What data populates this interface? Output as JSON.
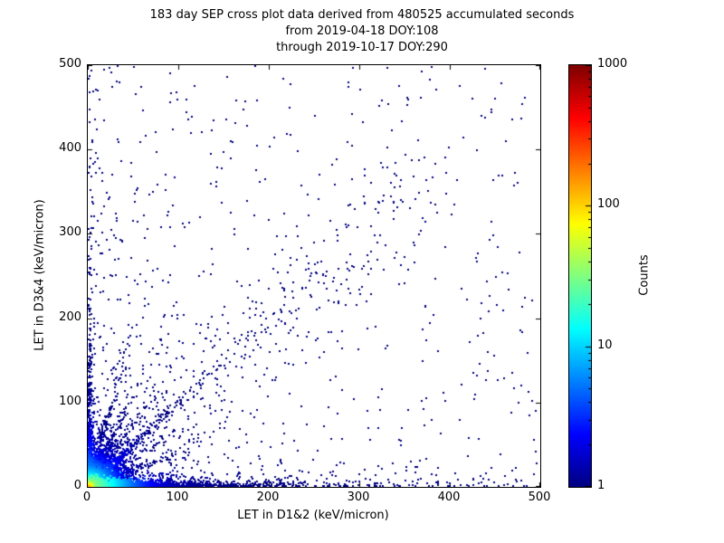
{
  "figure": {
    "background": "#ffffff"
  },
  "chart_data": {
    "type": "scatter",
    "title_lines": [
      "183 day SEP cross plot data derived from 480525 accumulated seconds",
      "from 2019-04-18 DOY:108",
      "through 2019-10-17 DOY:290"
    ],
    "xlabel": "LET in D1&2 (keV/micron)",
    "ylabel": "LET in D3&4 (keV/micron)",
    "xlim": [
      0,
      500
    ],
    "ylim": [
      0,
      500
    ],
    "xticks": [
      "0",
      "100",
      "200",
      "300",
      "400",
      "500"
    ],
    "yticks": [
      "0",
      "100",
      "200",
      "300",
      "400",
      "500"
    ],
    "grid": false,
    "legend": "none",
    "colorbar": {
      "label": "Counts",
      "scale": "log",
      "range": [
        1,
        1000
      ],
      "ticks": [
        "1",
        "10",
        "100",
        "1000"
      ],
      "colormap": "jet",
      "low_color": "#000080",
      "high_color": "#800000"
    },
    "description": "2D cross plot of LET in D1&2 vs LET in D3&4; dense hot (green/yellow, counts ~100) core at origin, cyan/green band along x-axis near y=0, fan of blue rays from origin at several slopes including a long 45-degree streak to ~(250,250), sparse count=1 dark blue points scattered over the plane with a loose diagonal cloud from ~(100,100) to ~(370,370) and isolated points up to y~460",
    "distribution": {
      "seed": 20190418,
      "point_size": 2,
      "clusters": [
        {
          "name": "origin-core",
          "kind": "exp2",
          "n": 6000,
          "sx": 5,
          "sy": 5,
          "c0": 120,
          "cr": 5
        },
        {
          "name": "origin-halo",
          "kind": "exp2",
          "n": 2500,
          "sx": 14,
          "sy": 12,
          "c0": 35,
          "cr": 12
        },
        {
          "name": "x-axis-band",
          "kind": "exp2",
          "n": 2200,
          "sx": 40,
          "sy": 2.5,
          "c0": 45,
          "cr": 20
        },
        {
          "name": "x-axis-far-band",
          "kind": "exp2",
          "n": 500,
          "sx": 120,
          "sy": 5,
          "c0": 4,
          "cr": 40
        },
        {
          "name": "y-axis-band",
          "kind": "exp2",
          "n": 450,
          "sx": 1.8,
          "sy": 70,
          "c0": 12,
          "cr": 25
        },
        {
          "name": "ray-45deg",
          "kind": "ray",
          "n": 450,
          "angle": 45,
          "len": 60,
          "jit0": 1,
          "jitr": 0.02,
          "c0": 15,
          "cr": 18
        },
        {
          "name": "ray-56deg",
          "kind": "ray",
          "n": 320,
          "angle": 56,
          "len": 40,
          "jit0": 1,
          "jitr": 0.03,
          "c0": 12,
          "cr": 15
        },
        {
          "name": "ray-66deg",
          "kind": "ray",
          "n": 300,
          "angle": 66,
          "len": 45,
          "jit0": 1,
          "jitr": 0.03,
          "c0": 12,
          "cr": 15
        },
        {
          "name": "ray-76deg",
          "kind": "ray",
          "n": 300,
          "angle": 76,
          "len": 55,
          "jit0": 1,
          "jitr": 0.02,
          "c0": 12,
          "cr": 15
        },
        {
          "name": "ray-34deg",
          "kind": "ray",
          "n": 250,
          "angle": 34,
          "len": 40,
          "jit0": 1,
          "jitr": 0.03,
          "c0": 10,
          "cr": 15
        },
        {
          "name": "ray-22deg",
          "kind": "ray",
          "n": 220,
          "angle": 22,
          "len": 45,
          "jit0": 1,
          "jitr": 0.03,
          "c0": 10,
          "cr": 15
        },
        {
          "name": "diagonal-cloud",
          "kind": "diag",
          "n": 230,
          "t0": 90,
          "t1": 370,
          "sig": 28,
          "c0": 0,
          "cr": 1
        },
        {
          "name": "sparse-field",
          "kind": "power",
          "n": 650,
          "px": 1.7,
          "py": 2.0,
          "c0": 0,
          "cr": 1
        },
        {
          "name": "left-vertical-sparse",
          "kind": "power",
          "n": 130,
          "px": 2.6,
          "py": 1.0,
          "c0": 0,
          "cr": 1
        }
      ],
      "outliers": [
        [
          125,
          421
        ],
        [
          331,
          454
        ],
        [
          352,
          461
        ],
        [
          231,
          398
        ],
        [
          305,
          377
        ],
        [
          337,
          327
        ],
        [
          345,
          263
        ],
        [
          254,
          341
        ],
        [
          433,
          200
        ],
        [
          452,
          127
        ],
        [
          472,
          22
        ],
        [
          420,
          58
        ],
        [
          8,
          372
        ],
        [
          15,
          302
        ],
        [
          22,
          341
        ]
      ]
    }
  }
}
